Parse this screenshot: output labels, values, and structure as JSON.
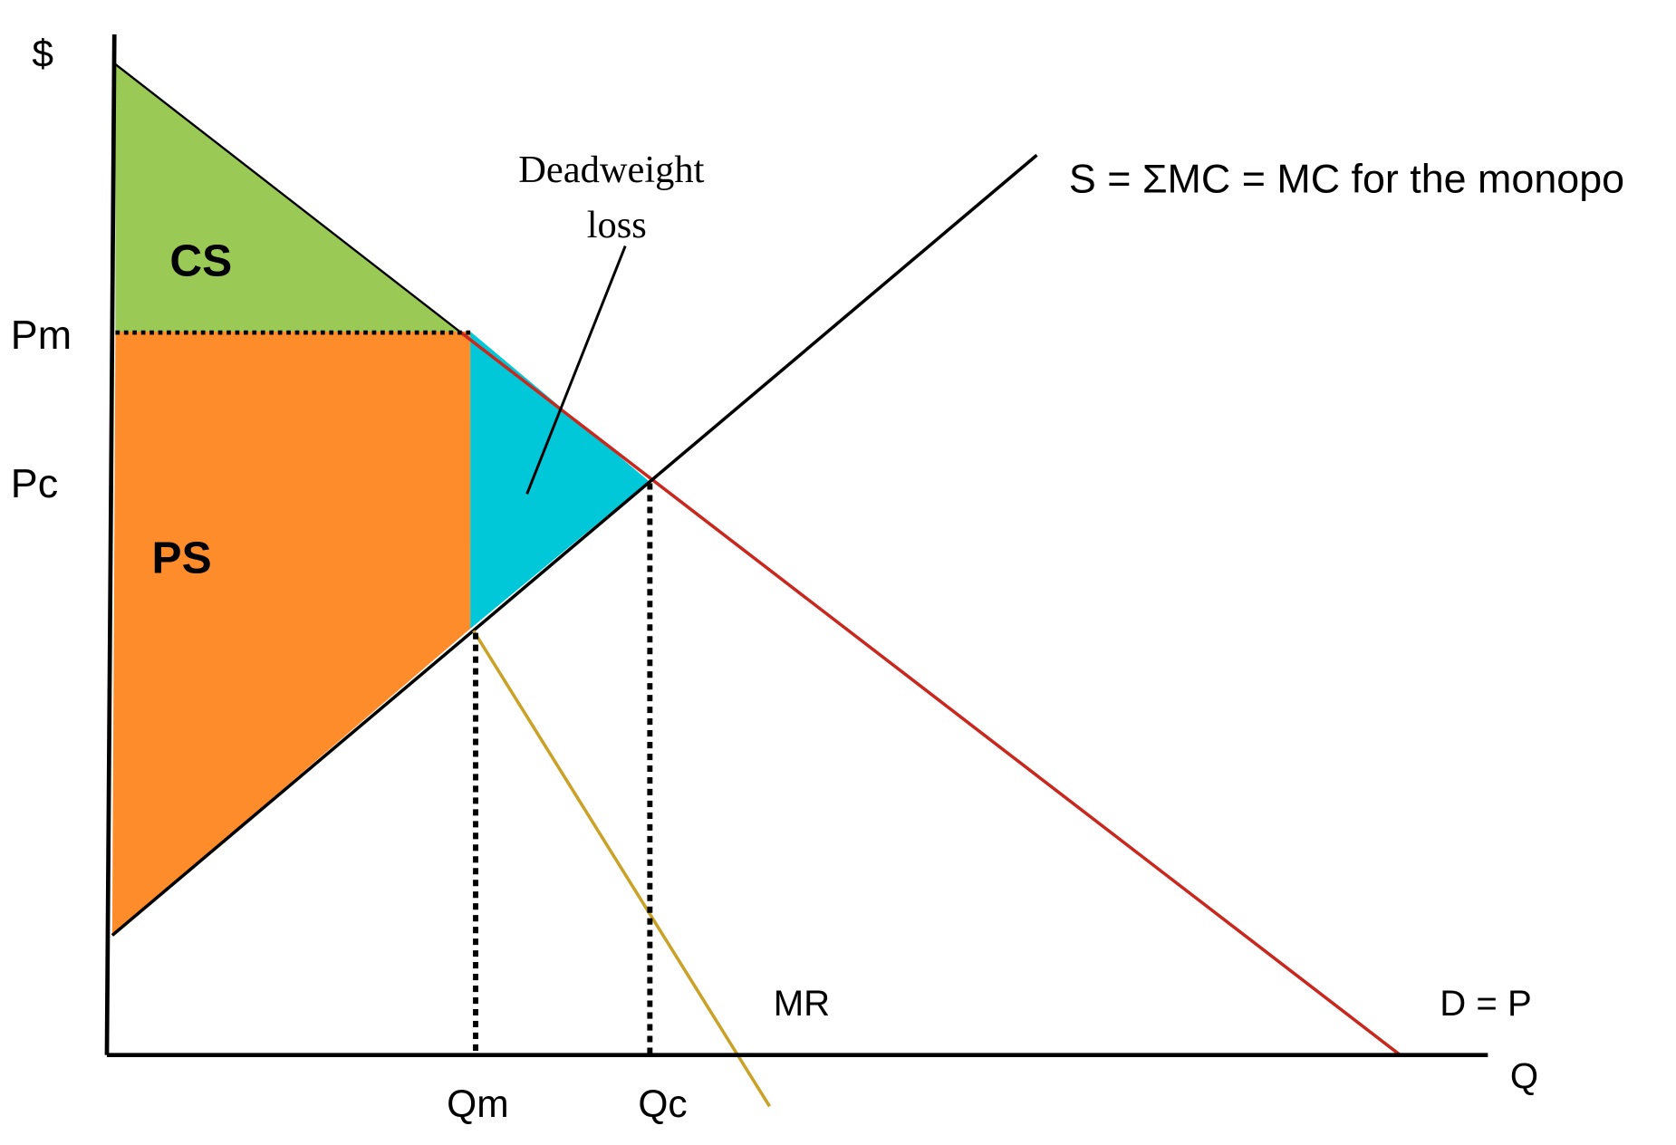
{
  "axes": {
    "y_label": "$",
    "x_label": "Q",
    "price_monopoly": "Pm",
    "price_competitive": "Pc",
    "quantity_monopoly": "Qm",
    "quantity_competitive": "Qc"
  },
  "areas": {
    "consumer_surplus": "CS",
    "producer_surplus": "PS",
    "deadweight_loss": [
      "Deadweight",
      "loss"
    ]
  },
  "curves": {
    "supply": "S = ΣMC = MC for the monopo",
    "marginal_revenue": "MR",
    "demand": "D = P"
  }
}
